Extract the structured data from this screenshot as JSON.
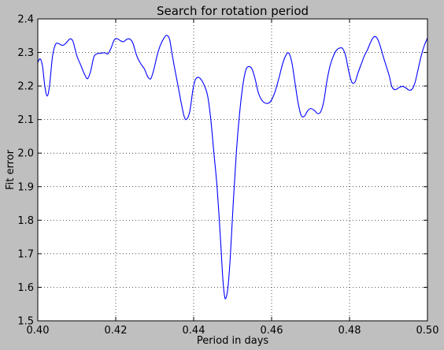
{
  "colors": {
    "figure_background": "#bfbfbf",
    "axes_background": "#ffffff",
    "line": "#0000ff",
    "grid": "#000000",
    "text": "#000000"
  },
  "chart_data": {
    "type": "line",
    "title": "Search for rotation period",
    "xlabel": "Period in days",
    "ylabel": "Fit error",
    "xlim": [
      0.4,
      0.5
    ],
    "ylim": [
      1.5,
      2.4
    ],
    "x_ticks": [
      0.4,
      0.42,
      0.44,
      0.46,
      0.48,
      0.5
    ],
    "x_tick_labels": [
      "0.40",
      "0.42",
      "0.44",
      "0.46",
      "0.48",
      "0.50"
    ],
    "y_ticks": [
      1.5,
      1.6,
      1.7,
      1.8,
      1.9,
      2.0,
      2.1,
      2.2,
      2.3,
      2.4
    ],
    "y_tick_labels": [
      "1.5",
      "1.6",
      "1.7",
      "1.8",
      "1.9",
      "2.0",
      "2.1",
      "2.2",
      "2.3",
      "2.4"
    ],
    "grid": true,
    "grid_style": "dotted",
    "legend": "none",
    "series": [
      {
        "points": [
          [
            0.4,
            2.27
          ],
          [
            0.4006,
            2.281
          ],
          [
            0.4012,
            2.26
          ],
          [
            0.4018,
            2.2
          ],
          [
            0.4024,
            2.17
          ],
          [
            0.403,
            2.2
          ],
          [
            0.4038,
            2.29
          ],
          [
            0.4046,
            2.325
          ],
          [
            0.4054,
            2.326
          ],
          [
            0.4064,
            2.321
          ],
          [
            0.4074,
            2.33
          ],
          [
            0.4082,
            2.34
          ],
          [
            0.409,
            2.334
          ],
          [
            0.41,
            2.291
          ],
          [
            0.411,
            2.263
          ],
          [
            0.412,
            2.235
          ],
          [
            0.4128,
            2.222
          ],
          [
            0.4136,
            2.246
          ],
          [
            0.4144,
            2.287
          ],
          [
            0.4152,
            2.296
          ],
          [
            0.4162,
            2.298
          ],
          [
            0.4172,
            2.299
          ],
          [
            0.418,
            2.296
          ],
          [
            0.4188,
            2.313
          ],
          [
            0.4196,
            2.337
          ],
          [
            0.4204,
            2.341
          ],
          [
            0.4212,
            2.335
          ],
          [
            0.422,
            2.332
          ],
          [
            0.4228,
            2.339
          ],
          [
            0.4236,
            2.34
          ],
          [
            0.4244,
            2.328
          ],
          [
            0.4254,
            2.29
          ],
          [
            0.4264,
            2.267
          ],
          [
            0.4274,
            2.25
          ],
          [
            0.4282,
            2.228
          ],
          [
            0.429,
            2.222
          ],
          [
            0.4298,
            2.25
          ],
          [
            0.4306,
            2.29
          ],
          [
            0.4314,
            2.32
          ],
          [
            0.4322,
            2.339
          ],
          [
            0.433,
            2.351
          ],
          [
            0.4338,
            2.34
          ],
          [
            0.4344,
            2.3
          ],
          [
            0.4352,
            2.248
          ],
          [
            0.436,
            2.2
          ],
          [
            0.4368,
            2.15
          ],
          [
            0.4376,
            2.108
          ],
          [
            0.4382,
            2.101
          ],
          [
            0.439,
            2.124
          ],
          [
            0.4398,
            2.188
          ],
          [
            0.4404,
            2.218
          ],
          [
            0.4412,
            2.226
          ],
          [
            0.442,
            2.218
          ],
          [
            0.4428,
            2.2
          ],
          [
            0.4436,
            2.17
          ],
          [
            0.4444,
            2.1
          ],
          [
            0.4452,
            2.0
          ],
          [
            0.446,
            1.9
          ],
          [
            0.4468,
            1.76
          ],
          [
            0.4474,
            1.64
          ],
          [
            0.4478,
            1.585
          ],
          [
            0.4482,
            1.566
          ],
          [
            0.4488,
            1.6
          ],
          [
            0.4494,
            1.69
          ],
          [
            0.4502,
            1.86
          ],
          [
            0.451,
            2.01
          ],
          [
            0.4518,
            2.12
          ],
          [
            0.4526,
            2.2
          ],
          [
            0.4534,
            2.248
          ],
          [
            0.4542,
            2.258
          ],
          [
            0.455,
            2.25
          ],
          [
            0.4558,
            2.22
          ],
          [
            0.4566,
            2.18
          ],
          [
            0.4576,
            2.156
          ],
          [
            0.4588,
            2.148
          ],
          [
            0.4598,
            2.155
          ],
          [
            0.4608,
            2.18
          ],
          [
            0.4618,
            2.22
          ],
          [
            0.4628,
            2.265
          ],
          [
            0.4636,
            2.29
          ],
          [
            0.4644,
            2.298
          ],
          [
            0.4652,
            2.27
          ],
          [
            0.466,
            2.21
          ],
          [
            0.4668,
            2.15
          ],
          [
            0.4676,
            2.112
          ],
          [
            0.4684,
            2.11
          ],
          [
            0.4692,
            2.125
          ],
          [
            0.47,
            2.133
          ],
          [
            0.471,
            2.127
          ],
          [
            0.4718,
            2.118
          ],
          [
            0.4726,
            2.123
          ],
          [
            0.4734,
            2.155
          ],
          [
            0.4742,
            2.215
          ],
          [
            0.475,
            2.26
          ],
          [
            0.4758,
            2.288
          ],
          [
            0.4766,
            2.306
          ],
          [
            0.4774,
            2.313
          ],
          [
            0.4782,
            2.312
          ],
          [
            0.479,
            2.29
          ],
          [
            0.4798,
            2.244
          ],
          [
            0.4806,
            2.211
          ],
          [
            0.4814,
            2.212
          ],
          [
            0.4822,
            2.24
          ],
          [
            0.483,
            2.265
          ],
          [
            0.4838,
            2.29
          ],
          [
            0.4846,
            2.308
          ],
          [
            0.4854,
            2.33
          ],
          [
            0.4862,
            2.346
          ],
          [
            0.487,
            2.344
          ],
          [
            0.4878,
            2.322
          ],
          [
            0.4886,
            2.29
          ],
          [
            0.4894,
            2.26
          ],
          [
            0.4902,
            2.23
          ],
          [
            0.4908,
            2.2
          ],
          [
            0.4914,
            2.19
          ],
          [
            0.492,
            2.19
          ],
          [
            0.4928,
            2.196
          ],
          [
            0.4936,
            2.199
          ],
          [
            0.4944,
            2.195
          ],
          [
            0.4952,
            2.188
          ],
          [
            0.496,
            2.19
          ],
          [
            0.4968,
            2.21
          ],
          [
            0.4976,
            2.25
          ],
          [
            0.4984,
            2.29
          ],
          [
            0.4992,
            2.321
          ],
          [
            0.5,
            2.343
          ]
        ]
      }
    ]
  }
}
